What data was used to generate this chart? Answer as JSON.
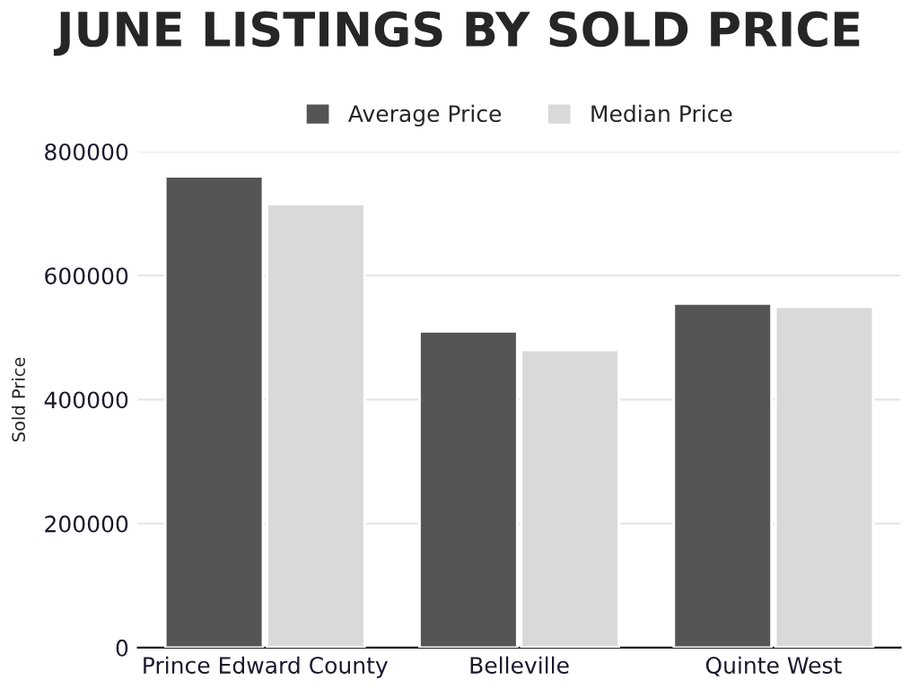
{
  "chart_data": {
    "type": "bar",
    "title": "JUNE LISTINGS BY SOLD PRICE",
    "ylabel": "Sold Price",
    "categories": [
      "Prince Edward County",
      "Belleville",
      "Quinte West"
    ],
    "series": [
      {
        "name": "Average Price",
        "color": "#555555",
        "values": [
          760000,
          510000,
          555000
        ]
      },
      {
        "name": "Median Price",
        "color": "#d9d9d9",
        "values": [
          715000,
          480000,
          550000
        ]
      }
    ],
    "ylim": [
      0,
      800000
    ],
    "yticks": [
      0,
      200000,
      400000,
      600000,
      800000
    ],
    "grid": "y",
    "legend": "top"
  }
}
